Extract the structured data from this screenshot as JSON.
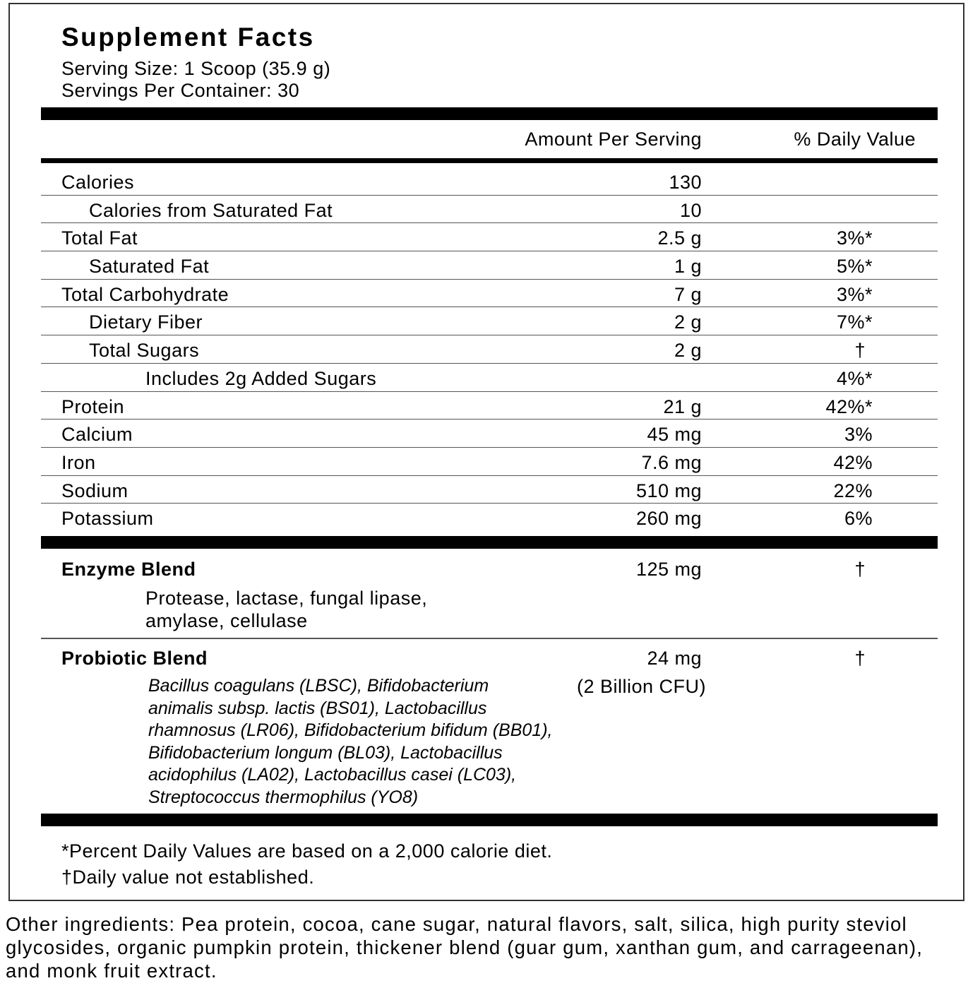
{
  "title": "Supplement Facts",
  "serving_size": "Serving Size: 1 Scoop (35.9 g)",
  "servings_per_container": "Servings Per Container: 30",
  "header": {
    "amount": "Amount Per Serving",
    "daily_value": "% Daily Value"
  },
  "nutrients": [
    {
      "label": "Calories",
      "amount": "130",
      "dv": "",
      "indent": 0
    },
    {
      "label": "Calories from Saturated Fat",
      "amount": "10",
      "dv": "",
      "indent": 1
    },
    {
      "label": "Total Fat",
      "amount": "2.5 g",
      "dv": "3%*",
      "indent": 0
    },
    {
      "label": "Saturated Fat",
      "amount": "1 g",
      "dv": "5%*",
      "indent": 1
    },
    {
      "label": "Total Carbohydrate",
      "amount": "7 g",
      "dv": "3%*",
      "indent": 0
    },
    {
      "label": "Dietary Fiber",
      "amount": "2 g",
      "dv": "7%*",
      "indent": 1
    },
    {
      "label": "Total Sugars",
      "amount": "2 g",
      "dv": "†",
      "indent": 1
    },
    {
      "label": "Includes 2g Added Sugars",
      "amount": "",
      "dv": "4%*",
      "indent": 2
    },
    {
      "label": "Protein",
      "amount": "21 g",
      "dv": "42%*",
      "indent": 0
    },
    {
      "label": "Calcium",
      "amount": "45 mg",
      "dv": "3%",
      "indent": 0
    },
    {
      "label": "Iron",
      "amount": "7.6 mg",
      "dv": "42%",
      "indent": 0
    },
    {
      "label": "Sodium",
      "amount": "510 mg",
      "dv": "22%",
      "indent": 0
    },
    {
      "label": "Potassium",
      "amount": "260 mg",
      "dv": "6%",
      "indent": 0
    }
  ],
  "enzyme_blend": {
    "name": "Enzyme Blend",
    "amount": "125 mg",
    "dv": "†",
    "lines": [
      "Protease, lactase, fungal lipase,",
      "amylase, cellulase"
    ]
  },
  "probiotic_blend": {
    "name": "Probiotic Blend",
    "amount": "24 mg",
    "cfu": "(2 Billion CFU)",
    "dv": "†",
    "lines": [
      "Bacillus coagulans (LBSC), Bifidobacterium",
      "animalis subsp. lactis (BS01), Lactobacillus",
      "rhamnosus (LR06), Bifidobacterium bifidum (BB01),",
      "Bifidobacterium longum (BL03), Lactobacillus",
      "acidophilus (LA02), Lactobacillus casei (LC03),",
      "Streptococcus thermophilus (YO8)"
    ]
  },
  "footnotes": [
    "*Percent Daily Values are based on a 2,000 calorie diet.",
    "†Daily value not established."
  ],
  "other_ingredients": "Other ingredients: Pea protein, cocoa, cane sugar, natural flavors, salt, silica, high purity steviol glycosides, organic pumpkin protein, thickener blend (guar gum, xanthan gum, and carrageenan), and monk fruit extract."
}
